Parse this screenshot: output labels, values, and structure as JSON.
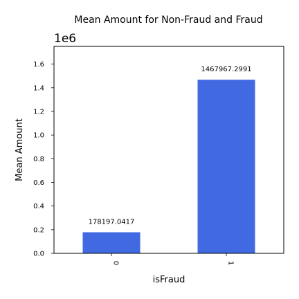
{
  "chart_data": {
    "type": "bar",
    "title": "Mean Amount for Non-Fraud and Fraud",
    "xlabel": "isFraud",
    "ylabel": "Mean Amount",
    "axis_offset_text": "1e6",
    "categories": [
      "0",
      "1"
    ],
    "values": [
      178197.0417,
      1467967.2991
    ],
    "data_labels": [
      "178197.0417",
      "1467967.2991"
    ],
    "ylim": [
      0,
      1750000
    ],
    "y_ticks": [
      0,
      200000,
      400000,
      600000,
      800000,
      1000000,
      1200000,
      1400000,
      1600000
    ],
    "y_tick_labels": [
      "0.0",
      "0.2",
      "0.4",
      "0.6",
      "0.8",
      "1.0",
      "1.2",
      "1.4",
      "1.6"
    ],
    "bar_color": "#4169e1",
    "grid": false,
    "legend": "none"
  }
}
